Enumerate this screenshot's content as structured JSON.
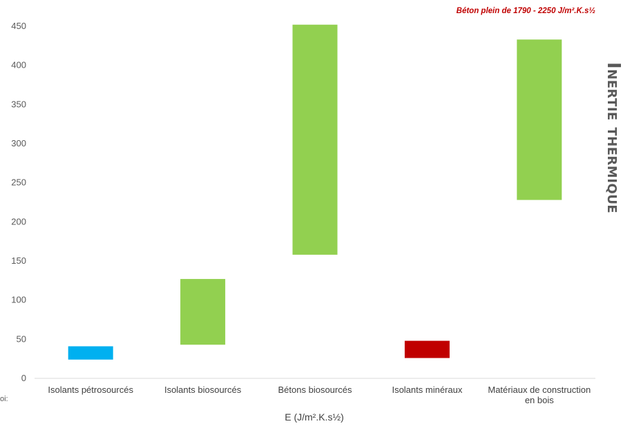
{
  "side_title": "Inertie thermique",
  "cut_text": "oi:",
  "chart_data": {
    "type": "bar",
    "subtype": "floating-range",
    "categories": [
      "Isolants pétrosourcés",
      "Isolants biosourcés",
      "Bétons biosourcés",
      "Isolants minéraux",
      "Matériaux de construction en bois"
    ],
    "category_lines": [
      [
        "Isolants pétrosourcés"
      ],
      [
        "Isolants biosourcés"
      ],
      [
        "Bétons biosourcés"
      ],
      [
        "Isolants minéraux"
      ],
      [
        "Matériaux de construction",
        "en bois"
      ]
    ],
    "ranges": [
      [
        24,
        41
      ],
      [
        43,
        127
      ],
      [
        158,
        452
      ],
      [
        26,
        48
      ],
      [
        228,
        433
      ]
    ],
    "colors": [
      "#00b0f0",
      "#92d050",
      "#92d050",
      "#c00000",
      "#92d050"
    ],
    "ylim": [
      0,
      450
    ],
    "yticks": [
      0,
      50,
      100,
      150,
      200,
      250,
      300,
      350,
      400,
      450
    ],
    "grid": false,
    "xlabel": "E (J/m².K.s½)",
    "annotation": "Béton plein de 1790 - 2250 J/m².K.s½"
  }
}
